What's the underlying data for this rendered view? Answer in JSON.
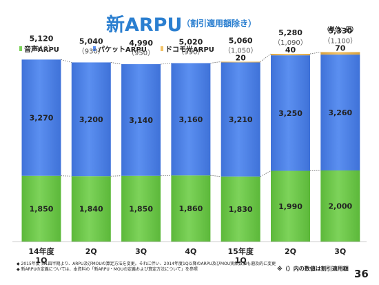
{
  "header": {
    "title": "新ARPU",
    "subtitle": "（割引適用額除き）",
    "unit": "（単位：円）"
  },
  "legend": [
    {
      "label": "音声ARPU",
      "color": "#7dd35a"
    },
    {
      "label": "パケットARPU",
      "color": "#5b8ff0"
    },
    {
      "label": "ドコモ光ARPU",
      "color": "#f2c266"
    }
  ],
  "chart_data": {
    "type": "bar",
    "stacked": true,
    "categories": [
      "14年度\n1Q",
      "2Q",
      "3Q",
      "4Q",
      "15年度\n1Q",
      "2Q",
      "3Q"
    ],
    "series": [
      {
        "name": "音声ARPU",
        "values": [
          1850,
          1840,
          1850,
          1860,
          1830,
          1990,
          2000
        ],
        "labels": [
          "1,850",
          "1,840",
          "1,850",
          "1,860",
          "1,830",
          "1,990",
          "2,000"
        ]
      },
      {
        "name": "パケットARPU",
        "values": [
          3270,
          3200,
          3140,
          3160,
          3210,
          3250,
          3260
        ],
        "labels": [
          "3,270",
          "3,200",
          "3,140",
          "3,160",
          "3,210",
          "3,250",
          "3,260"
        ]
      },
      {
        "name": "ドコモ光ARPU",
        "values": [
          0,
          0,
          0,
          0,
          20,
          40,
          70
        ],
        "labels": [
          "",
          "",
          "",
          "",
          "20",
          "40",
          "70"
        ]
      }
    ],
    "totals": [
      "5,120",
      "5,040",
      "4,990",
      "5,020",
      "5,060",
      "5,280",
      "5,330"
    ],
    "discounts": [
      "（910）",
      "（930）",
      "（950）",
      "（990）",
      "（1,050）",
      "（1,090）",
      "（1,100）"
    ],
    "connectors": "dotted",
    "grid": false
  },
  "footnotes": [
    "◆ 2015年度 第1四半期より、ARPU及びMOUの算定方法を変更。それに伴い、2014年度1Q以降のARPU及びMOU実績数値も遡及的に変更",
    "◆ 新ARPUの定義については、本資料の「新ARPU・MOUの定義および算定方法について」を参照"
  ],
  "note": "※（）内の数値は割引適用額",
  "page_number": "36"
}
